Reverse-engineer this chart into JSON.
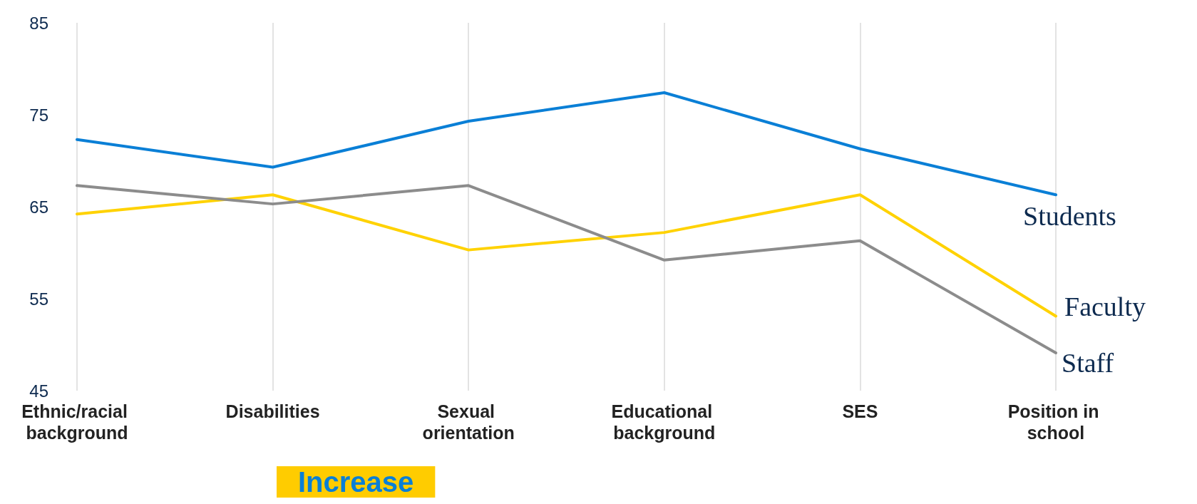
{
  "chart_data": {
    "type": "line",
    "categories": [
      "Ethnic/racial background",
      "Disabilities",
      "Sexual orientation",
      "Educational background",
      "SES",
      "Position in school"
    ],
    "series": [
      {
        "name": "Students",
        "color": "#0a7fd6",
        "values": [
          72.3,
          69.3,
          74.3,
          77.4,
          71.3,
          66.3
        ]
      },
      {
        "name": "Faculty",
        "color": "#ffd200",
        "values": [
          64.2,
          66.3,
          60.3,
          62.2,
          66.3,
          53.1
        ]
      },
      {
        "name": "Staff",
        "color": "#8c8c8c",
        "values": [
          67.3,
          65.3,
          67.3,
          59.2,
          61.3,
          49.1
        ]
      }
    ],
    "ylim": [
      45,
      85
    ],
    "yticks": [
      45,
      55,
      65,
      75,
      85
    ],
    "grid": "x",
    "legend": false,
    "marker": "none",
    "line_style": "solid",
    "annotations": [
      "Increase"
    ]
  }
}
